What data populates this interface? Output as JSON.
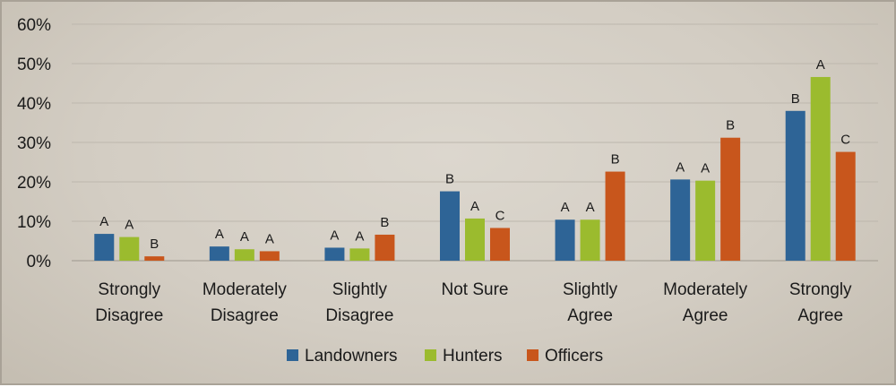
{
  "chart_data": {
    "type": "bar",
    "title": "",
    "xlabel": "",
    "ylabel": "",
    "ylim": [
      0,
      60
    ],
    "y_ticks": [
      "0%",
      "10%",
      "20%",
      "30%",
      "40%",
      "50%",
      "60%"
    ],
    "y_tick_values": [
      0,
      10,
      20,
      30,
      40,
      50,
      60
    ],
    "grid": true,
    "legend_position": "bottom",
    "categories": [
      [
        "Strongly",
        "Disagree"
      ],
      [
        "Moderately",
        "Disagree"
      ],
      [
        "Slightly",
        "Disagree"
      ],
      [
        "Not Sure"
      ],
      [
        "Slightly",
        "Agree"
      ],
      [
        "Moderately",
        "Agree"
      ],
      [
        "Strongly",
        "Agree"
      ]
    ],
    "series": [
      {
        "name": "Landowners",
        "color": "#2e6496",
        "values": [
          6.8,
          3.6,
          3.3,
          17.6,
          10.4,
          20.6,
          38.0
        ],
        "labels": [
          "A",
          "A",
          "A",
          "B",
          "A",
          "A",
          "B"
        ]
      },
      {
        "name": "Hunters",
        "color": "#9bbb2e",
        "values": [
          6.0,
          2.9,
          3.1,
          10.7,
          10.4,
          20.3,
          46.6
        ],
        "labels": [
          "A",
          "A",
          "A",
          "A",
          "A",
          "A",
          "A"
        ]
      },
      {
        "name": "Officers",
        "color": "#c8561c",
        "values": [
          1.1,
          2.4,
          6.6,
          8.3,
          22.6,
          31.2,
          27.6
        ],
        "labels": [
          "B",
          "A",
          "B",
          "C",
          "B",
          "B",
          "C"
        ]
      }
    ]
  }
}
